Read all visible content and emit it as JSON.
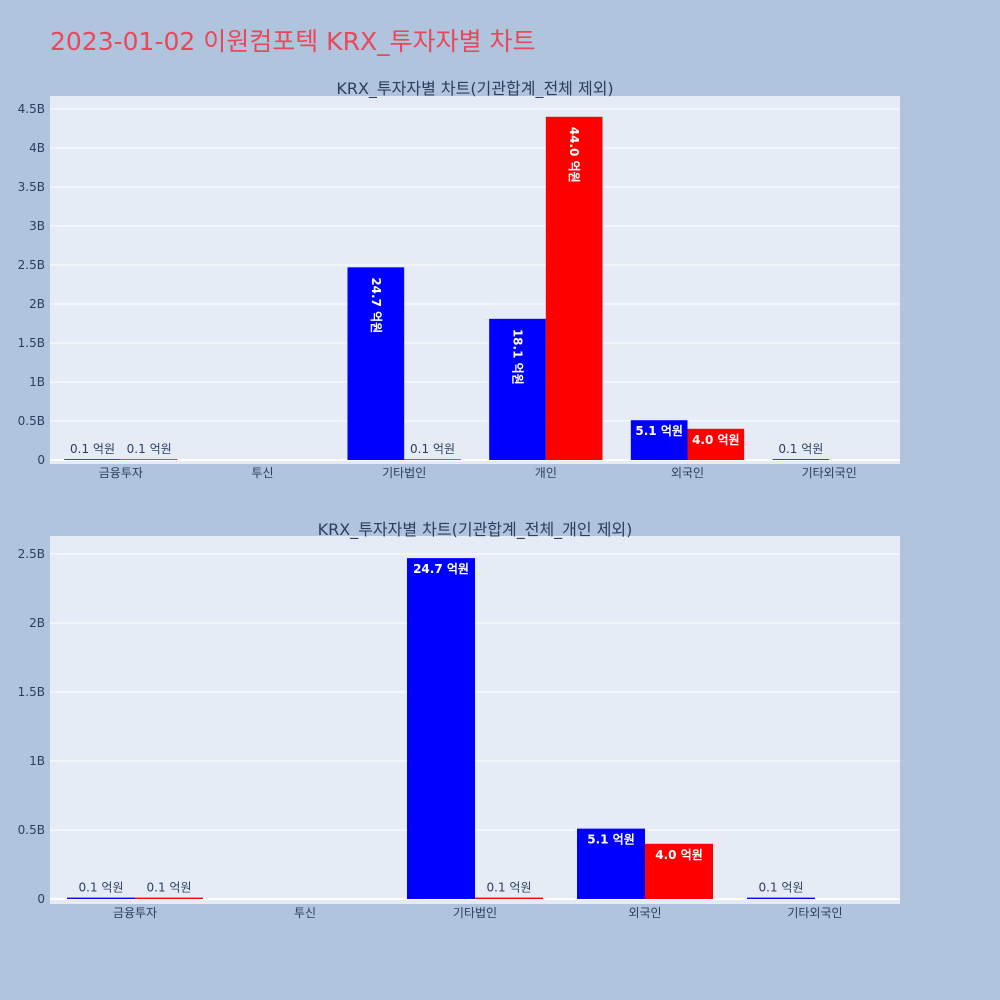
{
  "title": "2023-01-02 이원컴포텍 KRX_투자자별 차트",
  "colors": {
    "buy": "#0000ff",
    "sell": "#ff0000",
    "plot_bg": "#e5ecf6",
    "page_bg": "#b0c4de",
    "title": "#e8485a"
  },
  "chart_data": [
    {
      "type": "bar",
      "title": "KRX_투자자별 차트(기관합계_전체 제외)",
      "categories": [
        "금융투자",
        "투신",
        "기타법인",
        "개인",
        "외국인",
        "기타외국인"
      ],
      "ylim": [
        0,
        4.55
      ],
      "yticks": [
        0,
        0.5,
        1,
        1.5,
        2,
        2.5,
        3,
        3.5,
        4,
        4.5
      ],
      "ytick_labels": [
        "0",
        "0.5B",
        "1B",
        "1.5B",
        "2B",
        "2.5B",
        "3B",
        "3.5B",
        "4B",
        "4.5B"
      ],
      "grid": true,
      "series": [
        {
          "color": "#0000ff",
          "values": [
            0.01,
            0,
            2.47,
            1.81,
            0.51,
            0.01
          ],
          "labels": [
            "0.1 억원",
            "",
            "24.7 억원",
            "18.1 억원",
            "5.1 억원",
            "0.1 억원"
          ]
        },
        {
          "color": "#ff0000",
          "values": [
            0.01,
            0,
            0.01,
            4.4,
            0.4,
            0
          ],
          "labels": [
            "0.1 억원",
            "",
            "0.1 억원",
            "44.0 억원",
            "4.0 억원",
            ""
          ]
        }
      ]
    },
    {
      "type": "bar",
      "title": "KRX_투자자별 차트(기관합계_전체_개인 제외)",
      "categories": [
        "금융투자",
        "투신",
        "기타법인",
        "외국인",
        "기타외국인"
      ],
      "ylim": [
        0,
        2.5
      ],
      "yticks": [
        0,
        0.5,
        1,
        1.5,
        2,
        2.5
      ],
      "ytick_labels": [
        "0",
        "0.5B",
        "1B",
        "1.5B",
        "2B",
        "2.5B"
      ],
      "grid": true,
      "series": [
        {
          "color": "#0000ff",
          "values": [
            0.01,
            0,
            2.47,
            0.51,
            0.01
          ],
          "labels": [
            "0.1 억원",
            "",
            "24.7 억원",
            "5.1 억원",
            "0.1 억원"
          ]
        },
        {
          "color": "#ff0000",
          "values": [
            0.01,
            0,
            0.01,
            0.4,
            0
          ],
          "labels": [
            "0.1 억원",
            "",
            "0.1 억원",
            "4.0 억원",
            ""
          ]
        }
      ]
    }
  ]
}
